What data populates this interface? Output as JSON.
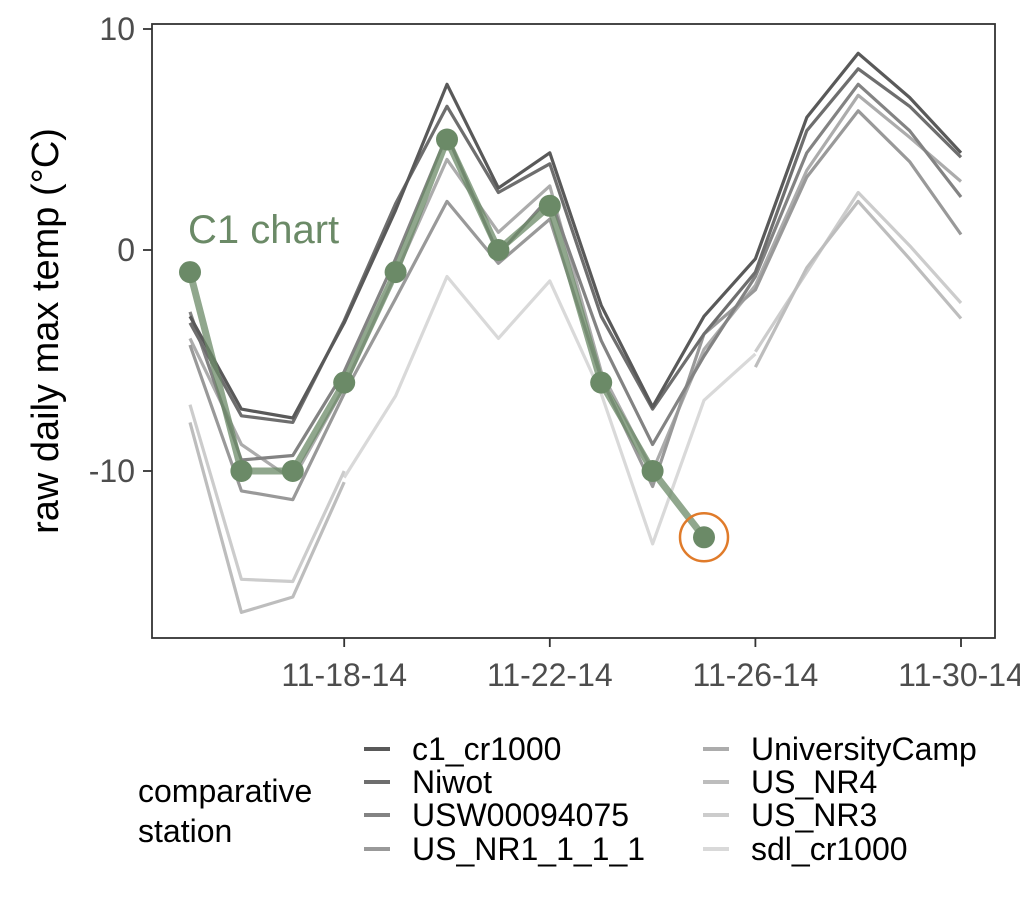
{
  "chart_data": {
    "type": "line",
    "title": "",
    "xlabel": "",
    "ylabel": "raw daily max temp (°C)",
    "x": [
      "11-15-14",
      "11-16-14",
      "11-17-14",
      "11-18-14",
      "11-19-14",
      "11-20-14",
      "11-21-14",
      "11-22-14",
      "11-23-14",
      "11-24-14",
      "11-25-14",
      "11-26-14",
      "11-27-14",
      "11-28-14",
      "11-29-14",
      "11-30-14"
    ],
    "x_tick_labels": [
      "11-18-14",
      "11-22-14",
      "11-26-14",
      "11-30-14"
    ],
    "y_ticks": [
      10,
      0,
      -10
    ],
    "y_tick_labels": [
      "10",
      "0",
      "-10"
    ],
    "ylim": [
      -17.5,
      10.2
    ],
    "grid": false,
    "legend": {
      "title": "comparative\nstation",
      "title_lines": [
        "comparative",
        "station"
      ],
      "position": "bottom"
    },
    "series": [
      {
        "name": "c1_cr1000",
        "color": "#595959",
        "values": [
          -3.0,
          -7.2,
          -7.6,
          -3.3,
          1.8,
          7.5,
          2.8,
          4.4,
          -2.5,
          -7.1,
          -3.0,
          -0.4,
          6.0,
          8.9,
          6.9,
          4.4
        ]
      },
      {
        "name": "Niwot",
        "color": "#6e6e6e",
        "values": [
          -3.3,
          -7.5,
          -7.8,
          -3.2,
          2.1,
          6.5,
          2.6,
          3.9,
          -3.0,
          -7.2,
          -3.8,
          -1.0,
          5.4,
          8.2,
          6.5,
          4.2
        ]
      },
      {
        "name": "USW00094075",
        "color": "#838383",
        "values": [
          -2.8,
          -9.5,
          -9.3,
          -5.5,
          -0.4,
          5.2,
          -0.2,
          2.4,
          -4.1,
          -8.8,
          -4.8,
          -1.2,
          4.4,
          7.5,
          5.4,
          2.4
        ]
      },
      {
        "name": "US_NR1_1_1_1",
        "color": "#999999",
        "values": [
          -4.3,
          -10.9,
          -11.3,
          -6.5,
          -2.2,
          2.2,
          -0.6,
          1.4,
          -5.8,
          -10.7,
          -3.8,
          -1.8,
          3.3,
          6.3,
          4.0,
          0.7
        ]
      },
      {
        "name": "UniversityCamp",
        "color": "#acacac",
        "values": [
          -4.0,
          -8.8,
          -10.4,
          -6.2,
          -1.1,
          4.1,
          0.8,
          2.9,
          -5.5,
          -10.0,
          -4.5,
          -1.6,
          3.6,
          7.0,
          5.1,
          3.1
        ]
      },
      {
        "name": "US_NR4",
        "color": "#bdbdbd",
        "values": [
          -7.8,
          -16.4,
          -15.7,
          -10.5,
          null,
          null,
          null,
          null,
          null,
          null,
          null,
          -5.3,
          -0.8,
          2.2,
          -0.4,
          -3.1
        ]
      },
      {
        "name": "US_NR3",
        "color": "#cccccc",
        "values": [
          -7.0,
          -14.9,
          -15.0,
          -10.0,
          null,
          null,
          null,
          null,
          null,
          null,
          null,
          -4.6,
          -1.0,
          2.6,
          0.2,
          -2.4
        ]
      },
      {
        "name": "sdl_cr1000",
        "color": "#d9d9d9",
        "values": [
          null,
          null,
          null,
          -10.3,
          -6.6,
          -1.2,
          -4.0,
          -1.4,
          -6.5,
          -13.3,
          -6.8,
          -4.7,
          null,
          null,
          null,
          null
        ]
      }
    ],
    "highlight_series": {
      "name": "C1 chart",
      "label": "C1 chart",
      "color": "#6b8a67",
      "values": [
        -1,
        -10,
        -10,
        -6,
        -1,
        5,
        0,
        2,
        -6,
        -10,
        -13,
        null,
        null,
        null,
        null,
        null
      ],
      "circled_point": {
        "x": "11-25-14",
        "y": -13,
        "color": "#e07b2a"
      }
    }
  }
}
